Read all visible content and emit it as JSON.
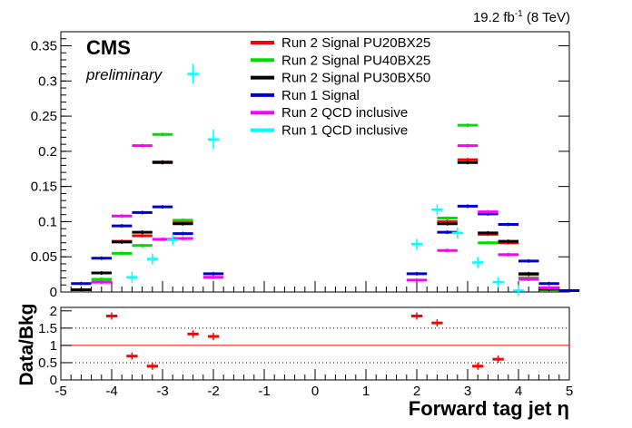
{
  "header": {
    "lumi_value": "19.2 fb",
    "lumi_exp": "-1",
    "lumi_tail": " (8 TeV)",
    "experiment": "CMS",
    "status": "preliminary"
  },
  "chart_data": [
    {
      "type": "scatter",
      "panel": "main",
      "xlim": [
        -5,
        5
      ],
      "ylim": [
        0,
        0.37
      ],
      "xlabel": "",
      "ylabel": "",
      "bin_width": 0.4,
      "legend_placement": "top-center",
      "y_ticks": [
        0,
        0.05,
        0.1,
        0.15,
        0.2,
        0.25,
        0.3,
        0.35
      ],
      "y_tick_labels": [
        "0",
        "0.05",
        "0.1",
        "0.15",
        "0.2",
        "0.25",
        "0.3",
        "0.35"
      ],
      "series": [
        {
          "name": "Run 2 Signal PU20BX25",
          "color": "#ff0000",
          "points": [
            [
              -4.6,
              0.003
            ],
            [
              -4.2,
              0.027
            ],
            [
              -3.8,
              0.072
            ],
            [
              -3.4,
              0.08
            ],
            [
              -3.0,
              0.185
            ],
            [
              -2.6,
              0.1
            ],
            [
              2.6,
              0.1
            ],
            [
              3.0,
              0.188
            ],
            [
              3.4,
              0.082
            ],
            [
              3.8,
              0.07
            ],
            [
              4.2,
              0.025
            ],
            [
              4.6,
              0.004
            ]
          ]
        },
        {
          "name": "Run 2 Signal PU40BX25",
          "color": "#00dd00",
          "points": [
            [
              -4.6,
              0.002
            ],
            [
              -4.2,
              0.018
            ],
            [
              -3.8,
              0.055
            ],
            [
              -3.4,
              0.066
            ],
            [
              -3.0,
              0.224
            ],
            [
              -2.6,
              0.102
            ],
            [
              2.6,
              0.105
            ],
            [
              3.0,
              0.237
            ],
            [
              3.4,
              0.07
            ],
            [
              3.8,
              0.053
            ],
            [
              4.2,
              0.02
            ],
            [
              4.6,
              0.003
            ]
          ]
        },
        {
          "name": "Run 2 Signal PU30BX50",
          "color": "#000000",
          "points": [
            [
              -4.6,
              0.003
            ],
            [
              -4.2,
              0.027
            ],
            [
              -3.8,
              0.071
            ],
            [
              -3.4,
              0.085
            ],
            [
              -3.0,
              0.184
            ],
            [
              -2.6,
              0.097
            ],
            [
              2.6,
              0.097
            ],
            [
              3.0,
              0.184
            ],
            [
              3.4,
              0.084
            ],
            [
              3.8,
              0.072
            ],
            [
              4.2,
              0.026
            ],
            [
              4.6,
              0.004
            ]
          ]
        },
        {
          "name": "Run 1 Signal",
          "color": "#0000cc",
          "points": [
            [
              -4.6,
              0.012
            ],
            [
              -4.2,
              0.048
            ],
            [
              -3.8,
              0.094
            ],
            [
              -3.4,
              0.113
            ],
            [
              -3.0,
              0.121
            ],
            [
              -2.6,
              0.083
            ],
            [
              -2.0,
              0.026
            ],
            [
              2.0,
              0.026
            ],
            [
              2.6,
              0.085
            ],
            [
              3.0,
              0.122
            ],
            [
              3.4,
              0.111
            ],
            [
              3.8,
              0.096
            ],
            [
              4.2,
              0.044
            ],
            [
              4.6,
              0.012
            ],
            [
              5.0,
              0.002
            ]
          ]
        },
        {
          "name": "Run 2 QCD inclusive",
          "color": "#ff00ff",
          "points": [
            [
              -4.2,
              0.014
            ],
            [
              -3.8,
              0.108
            ],
            [
              -3.4,
              0.208
            ],
            [
              -3.0,
              0.075
            ],
            [
              -2.6,
              0.076
            ],
            [
              -2.0,
              0.021
            ],
            [
              2.0,
              0.017
            ],
            [
              2.6,
              0.059
            ],
            [
              3.0,
              0.208
            ],
            [
              3.4,
              0.114
            ],
            [
              3.8,
              0.053
            ],
            [
              4.2,
              0.018
            ],
            [
              4.6,
              0.006
            ]
          ]
        },
        {
          "name": "Run 1 QCD inclusive",
          "color": "#00ffff",
          "points": [
            [
              -3.6,
              0.021
            ],
            [
              -3.2,
              0.047
            ],
            [
              -2.8,
              0.074
            ],
            [
              -2.4,
              0.31
            ],
            [
              -2.0,
              0.217
            ],
            [
              2.0,
              0.068
            ],
            [
              2.4,
              0.117
            ],
            [
              2.8,
              0.084
            ],
            [
              3.2,
              0.042
            ],
            [
              3.6,
              0.014
            ],
            [
              4.0,
              0.002
            ]
          ]
        }
      ]
    },
    {
      "type": "scatter",
      "panel": "ratio",
      "xlim": [
        -5,
        5
      ],
      "ylim": [
        0,
        2.1
      ],
      "xlabel": "Forward tag jet η",
      "ylabel": "Data/Bkg",
      "reference_line": 1,
      "dotted_lines": [
        0.5,
        1.5
      ],
      "x_ticks": [
        -5,
        -4,
        -3,
        -2,
        -1,
        0,
        1,
        2,
        3,
        4,
        5
      ],
      "x_tick_labels": [
        "-5",
        "-4",
        "-3",
        "-2",
        "-1",
        "0",
        "1",
        "2",
        "3",
        "4",
        "5"
      ],
      "y_ticks": [
        0,
        0.5,
        1,
        1.5,
        2
      ],
      "y_tick_labels": [
        "0",
        "0.5",
        "1",
        "1.5",
        "2"
      ],
      "series": [
        {
          "name": "",
          "color": "#ff0000",
          "points": [
            [
              -4.0,
              1.85
            ],
            [
              -3.6,
              0.69
            ],
            [
              -3.2,
              0.4
            ],
            [
              -2.4,
              1.33
            ],
            [
              -2.0,
              1.26
            ],
            [
              2.0,
              1.85
            ],
            [
              2.4,
              1.65
            ],
            [
              3.2,
              0.4
            ],
            [
              3.6,
              0.6
            ]
          ]
        }
      ]
    }
  ]
}
